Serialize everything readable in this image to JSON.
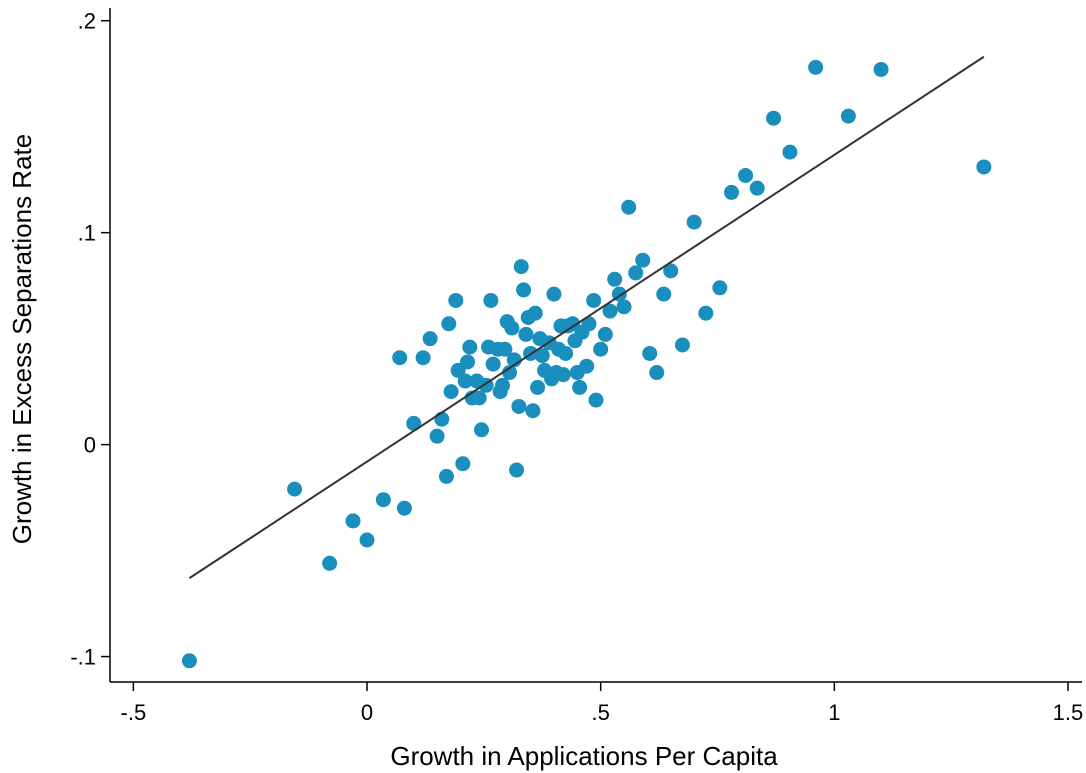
{
  "chart_data": {
    "type": "scatter",
    "title": "",
    "xlabel": "Growth in Applications Per Capita",
    "ylabel": "Growth in Excess Separations Rate",
    "xlim": [
      -0.55,
      1.53
    ],
    "ylim": [
      -0.112,
      0.206
    ],
    "x_ticks": [
      -0.5,
      0,
      0.5,
      1,
      1.5
    ],
    "x_tick_labels": [
      "-.5",
      "0",
      ".5",
      "1",
      "1.5"
    ],
    "y_ticks": [
      -0.1,
      0,
      0.1,
      0.2
    ],
    "y_tick_labels": [
      "-.1",
      "0",
      ".1",
      ".2"
    ],
    "grid": false,
    "marker_color": "#1a8fbe",
    "line_color": "#333333",
    "fit_line": {
      "x": [
        -0.38,
        1.32
      ],
      "y": [
        -0.063,
        0.183
      ]
    },
    "points": [
      [
        -0.38,
        -0.102
      ],
      [
        -0.155,
        -0.021
      ],
      [
        -0.08,
        -0.056
      ],
      [
        -0.03,
        -0.036
      ],
      [
        0.0,
        -0.045
      ],
      [
        0.035,
        -0.026
      ],
      [
        0.08,
        -0.03
      ],
      [
        0.07,
        0.041
      ],
      [
        0.1,
        0.01
      ],
      [
        0.12,
        0.041
      ],
      [
        0.135,
        0.05
      ],
      [
        0.15,
        0.004
      ],
      [
        0.16,
        0.012
      ],
      [
        0.17,
        -0.015
      ],
      [
        0.175,
        0.057
      ],
      [
        0.18,
        0.025
      ],
      [
        0.19,
        0.068
      ],
      [
        0.195,
        0.035
      ],
      [
        0.205,
        -0.009
      ],
      [
        0.21,
        0.03
      ],
      [
        0.215,
        0.039
      ],
      [
        0.22,
        0.046
      ],
      [
        0.225,
        0.022
      ],
      [
        0.235,
        0.03
      ],
      [
        0.24,
        0.022
      ],
      [
        0.245,
        0.007
      ],
      [
        0.255,
        0.028
      ],
      [
        0.26,
        0.046
      ],
      [
        0.265,
        0.068
      ],
      [
        0.27,
        0.038
      ],
      [
        0.28,
        0.045
      ],
      [
        0.285,
        0.025
      ],
      [
        0.29,
        0.028
      ],
      [
        0.295,
        0.045
      ],
      [
        0.3,
        0.058
      ],
      [
        0.305,
        0.034
      ],
      [
        0.31,
        0.055
      ],
      [
        0.315,
        0.04
      ],
      [
        0.32,
        -0.012
      ],
      [
        0.325,
        0.018
      ],
      [
        0.33,
        0.084
      ],
      [
        0.335,
        0.073
      ],
      [
        0.34,
        0.052
      ],
      [
        0.345,
        0.06
      ],
      [
        0.35,
        0.043
      ],
      [
        0.355,
        0.016
      ],
      [
        0.36,
        0.062
      ],
      [
        0.365,
        0.027
      ],
      [
        0.37,
        0.05
      ],
      [
        0.375,
        0.042
      ],
      [
        0.38,
        0.035
      ],
      [
        0.39,
        0.048
      ],
      [
        0.395,
        0.031
      ],
      [
        0.4,
        0.071
      ],
      [
        0.405,
        0.034
      ],
      [
        0.41,
        0.045
      ],
      [
        0.415,
        0.056
      ],
      [
        0.42,
        0.033
      ],
      [
        0.425,
        0.043
      ],
      [
        0.43,
        0.056
      ],
      [
        0.44,
        0.057
      ],
      [
        0.445,
        0.049
      ],
      [
        0.45,
        0.034
      ],
      [
        0.455,
        0.027
      ],
      [
        0.46,
        0.053
      ],
      [
        0.47,
        0.037
      ],
      [
        0.475,
        0.057
      ],
      [
        0.485,
        0.068
      ],
      [
        0.49,
        0.021
      ],
      [
        0.5,
        0.045
      ],
      [
        0.51,
        0.052
      ],
      [
        0.52,
        0.063
      ],
      [
        0.53,
        0.078
      ],
      [
        0.54,
        0.071
      ],
      [
        0.55,
        0.065
      ],
      [
        0.56,
        0.112
      ],
      [
        0.575,
        0.081
      ],
      [
        0.59,
        0.087
      ],
      [
        0.605,
        0.043
      ],
      [
        0.62,
        0.034
      ],
      [
        0.635,
        0.071
      ],
      [
        0.65,
        0.082
      ],
      [
        0.675,
        0.047
      ],
      [
        0.7,
        0.105
      ],
      [
        0.725,
        0.062
      ],
      [
        0.755,
        0.074
      ],
      [
        0.78,
        0.119
      ],
      [
        0.81,
        0.127
      ],
      [
        0.835,
        0.121
      ],
      [
        0.87,
        0.154
      ],
      [
        0.905,
        0.138
      ],
      [
        0.96,
        0.178
      ],
      [
        1.03,
        0.155
      ],
      [
        1.1,
        0.177
      ],
      [
        1.32,
        0.131
      ]
    ]
  }
}
